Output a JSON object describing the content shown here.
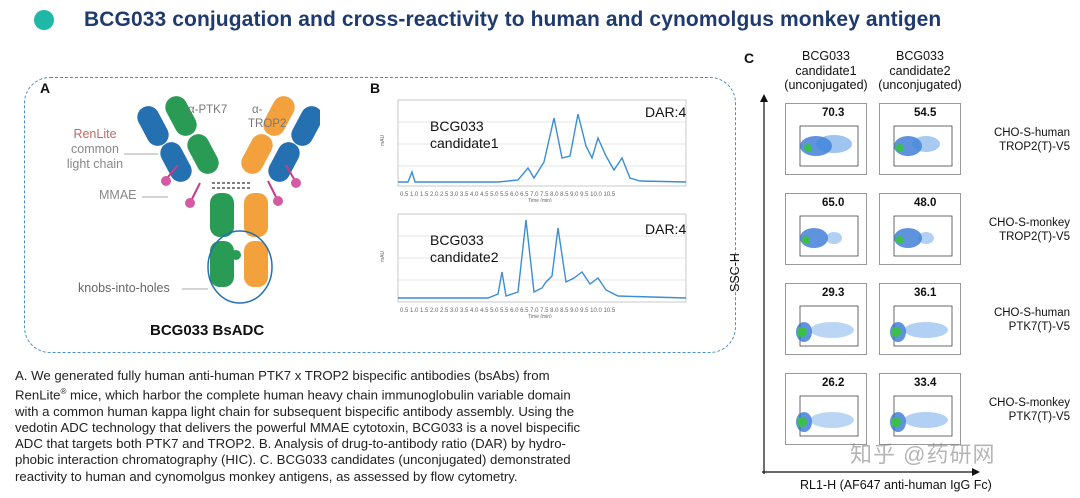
{
  "title": "BCG033 conjugation and cross-reactivity to human and cynomolgus monkey antigen",
  "panel_a": {
    "label": "A",
    "alpha_ptk7": "α-PTK7",
    "alpha_trop2_line1": "α-",
    "alpha_trop2_line2": "TROP2",
    "renlite_line1": "RenLite",
    "renlite_line2": "common",
    "renlite_line3": "light chain",
    "mmae": "MMAE",
    "knobs": "knobs-into-holes",
    "name": "BCG033 BsADC"
  },
  "panel_b": {
    "label": "B",
    "chrom1": {
      "name_line1": "BCG033",
      "name_line2": "candidate1",
      "dar": "DAR:4"
    },
    "chrom2": {
      "name_line1": "BCG033",
      "name_line2": "candidate2",
      "dar": "DAR:4"
    }
  },
  "panel_c": {
    "label": "C",
    "columns": [
      {
        "line1": "BCG033",
        "line2": "candidate1",
        "line3": "(unconjugated)"
      },
      {
        "line1": "BCG033",
        "line2": "candidate2",
        "line3": "(unconjugated)"
      }
    ],
    "rows": [
      {
        "line1": "CHO-S-human",
        "line2": "TROP2(T)-V5",
        "values": [
          "70.3",
          "54.5"
        ]
      },
      {
        "line1": "CHO-S-monkey",
        "line2": "TROP2(T)-V5",
        "values": [
          "65.0",
          "48.0"
        ]
      },
      {
        "line1": "CHO-S-human",
        "line2": "PTK7(T)-V5",
        "values": [
          "29.3",
          "36.1"
        ]
      },
      {
        "line1": "CHO-S-monkey",
        "line2": "PTK7(T)-V5",
        "values": [
          "26.2",
          "33.4"
        ]
      }
    ],
    "y_axis": "SSC-H",
    "x_axis": "RL1-H (AF647 anti-human IgG Fc)"
  },
  "caption": {
    "l1": "A. We generated fully human anti-human PTK7 x TROP2 bispecific antibodies (bsAbs) from",
    "l2a": "RenLite",
    "l2sup": "®",
    "l2b": " mice, which harbor the complete human heavy chain immunoglobulin variable domain",
    "l3": "with a common human kappa light chain for subsequent bispecific antibody assembly. Using the",
    "l4": "vedotin ADC technology that delivers the powerful MMAE cytotoxin, BCG033 is a novel bispecific",
    "l5": "ADC that targets both PTK7 and TROP2. B. Analysis of drug-to-antibody ratio (DAR) by hydro-",
    "l6": "phobic interaction chromatography (HIC). C. BCG033 candidates (unconjugated) demonstrated",
    "l7": "reactivity to human and cynomolgus monkey antigens, as assessed by flow cytometry."
  },
  "watermark": "知乎 @药研网"
}
